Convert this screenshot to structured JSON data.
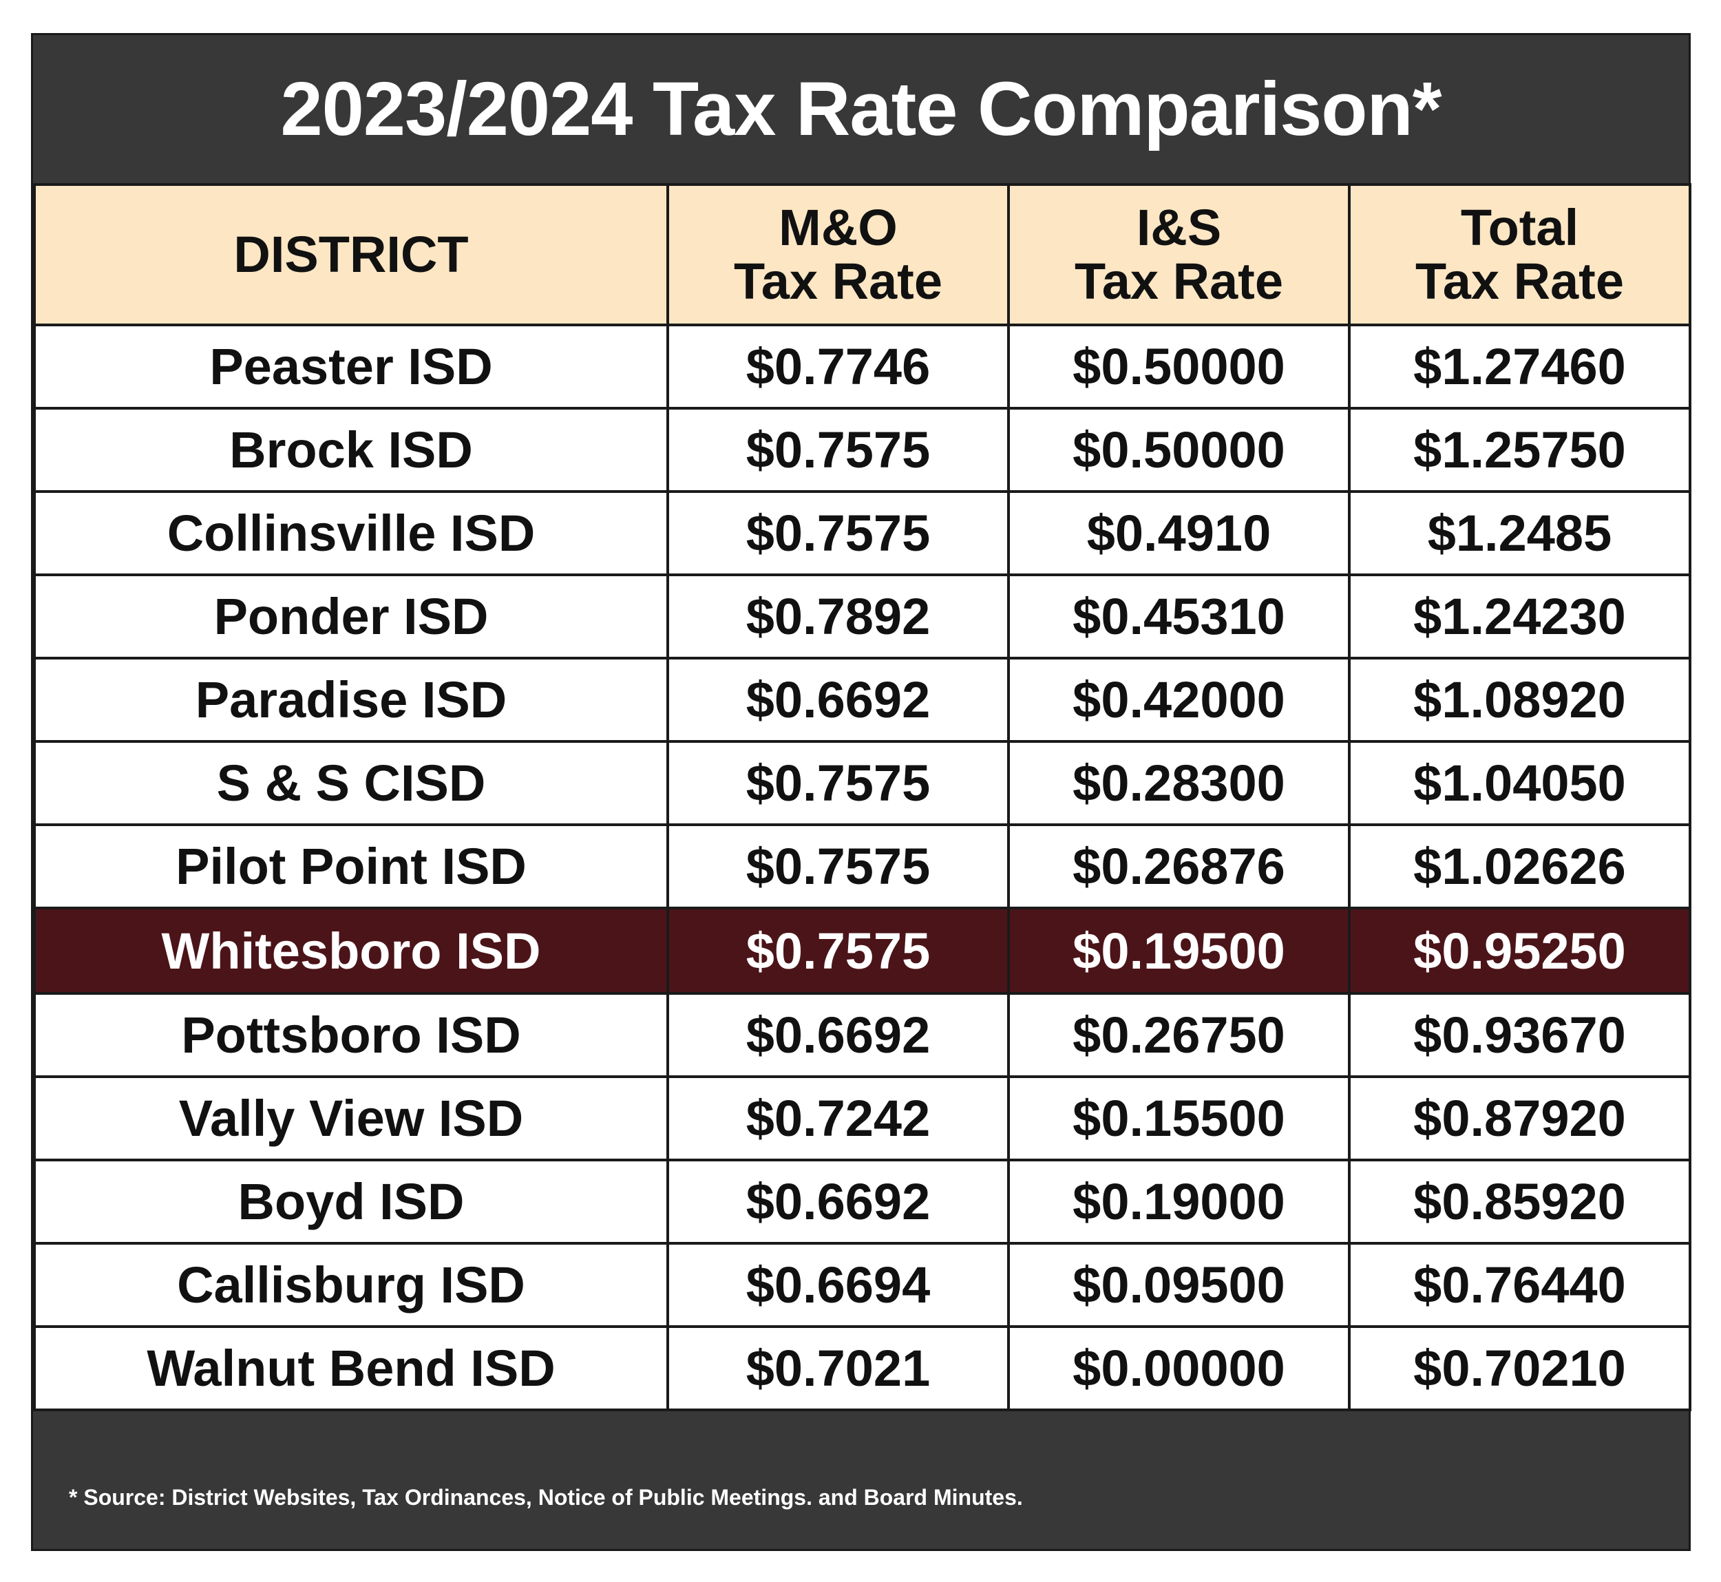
{
  "title": "2023/2024 Tax Rate Comparison*",
  "headers": {
    "district": "DISTRICT",
    "mo_line1": "M&O",
    "mo_line2": "Tax Rate",
    "is_line1": "I&S",
    "is_line2": "Tax Rate",
    "total_line1": "Total",
    "total_line2": "Tax Rate"
  },
  "rows": [
    {
      "district": "Peaster ISD",
      "mo": "$0.7746",
      "is": "$0.50000",
      "total": "$1.27460"
    },
    {
      "district": "Brock ISD",
      "mo": "$0.7575",
      "is": "$0.50000",
      "total": "$1.25750"
    },
    {
      "district": "Collinsville ISD",
      "mo": "$0.7575",
      "is": "$0.4910",
      "total": "$1.2485"
    },
    {
      "district": "Ponder ISD",
      "mo": "$0.7892",
      "is": "$0.45310",
      "total": "$1.24230"
    },
    {
      "district": "Paradise ISD",
      "mo": "$0.6692",
      "is": "$0.42000",
      "total": "$1.08920"
    },
    {
      "district": "S & S CISD",
      "mo": "$0.7575",
      "is": "$0.28300",
      "total": "$1.04050"
    },
    {
      "district": "Pilot Point ISD",
      "mo": "$0.7575",
      "is": "$0.26876",
      "total": "$1.02626"
    },
    {
      "district": "Whitesboro ISD",
      "mo": "$0.7575",
      "is": "$0.19500",
      "total": "$0.95250",
      "highlighted": true
    },
    {
      "district": "Pottsboro ISD",
      "mo": "$0.6692",
      "is": "$0.26750",
      "total": "$0.93670"
    },
    {
      "district": "Vally View ISD",
      "mo": "$0.7242",
      "is": "$0.15500",
      "total": "$0.87920"
    },
    {
      "district": "Boyd ISD",
      "mo": "$0.6692",
      "is": "$0.19000",
      "total": "$0.85920"
    },
    {
      "district": "Callisburg ISD",
      "mo": "$0.6694",
      "is": "$0.09500",
      "total": "$0.76440"
    },
    {
      "district": "Walnut Bend ISD",
      "mo": "$0.7021",
      "is": "$0.00000",
      "total": "$0.70210"
    }
  ],
  "footnote": "* Source: District Websites, Tax Ordinances, Notice of Public Meetings. and Board Minutes.",
  "colors": {
    "frame": "#383838",
    "header_bg": "#fce6c4",
    "highlight_bg": "#4b1419",
    "text": "#111111"
  }
}
